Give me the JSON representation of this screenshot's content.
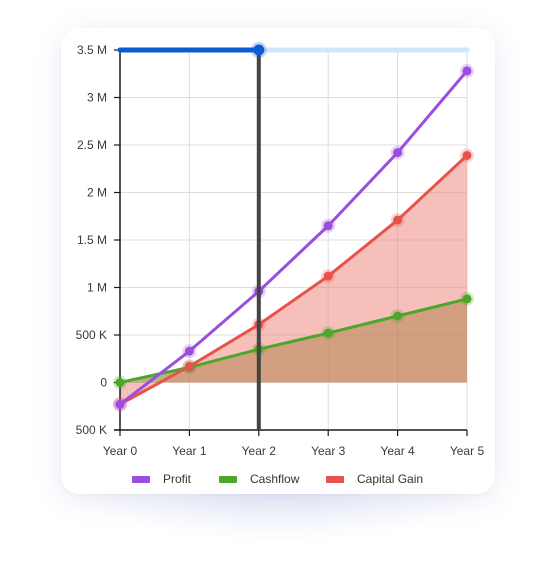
{
  "chart_data": {
    "type": "line",
    "categories": [
      "Year 0",
      "Year 1",
      "Year 2",
      "Year 3",
      "Year 4",
      "Year 5"
    ],
    "y_ticks": [
      "3.5 M",
      "3 M",
      "2.5 M",
      "2 M",
      "1.5 M",
      "1 M",
      "500 K",
      "0",
      "500 K"
    ],
    "ylim": [
      -500000,
      3500000
    ],
    "grid": true,
    "legend_position": "bottom",
    "series": [
      {
        "name": "Profit",
        "color": "#9b4de0",
        "values": [
          -230000,
          330000,
          960000,
          1650000,
          2420000,
          3280000
        ],
        "fill": false
      },
      {
        "name": "Cashflow",
        "color": "#4aa72a",
        "values": [
          0,
          160000,
          350000,
          520000,
          700000,
          880000
        ],
        "fill": true,
        "fill_color": "#6f7d18"
      },
      {
        "name": "Capital Gain",
        "color": "#e8524a",
        "values": [
          -230000,
          170000,
          610000,
          1120000,
          1710000,
          2390000
        ],
        "fill": true,
        "fill_color": "#ef8a82"
      }
    ],
    "cursor_category": "Year 2",
    "range_slider": {
      "value_fraction": 0.4,
      "track_color": "#d3e5fb",
      "fill_color": "#0b5bd3"
    }
  }
}
